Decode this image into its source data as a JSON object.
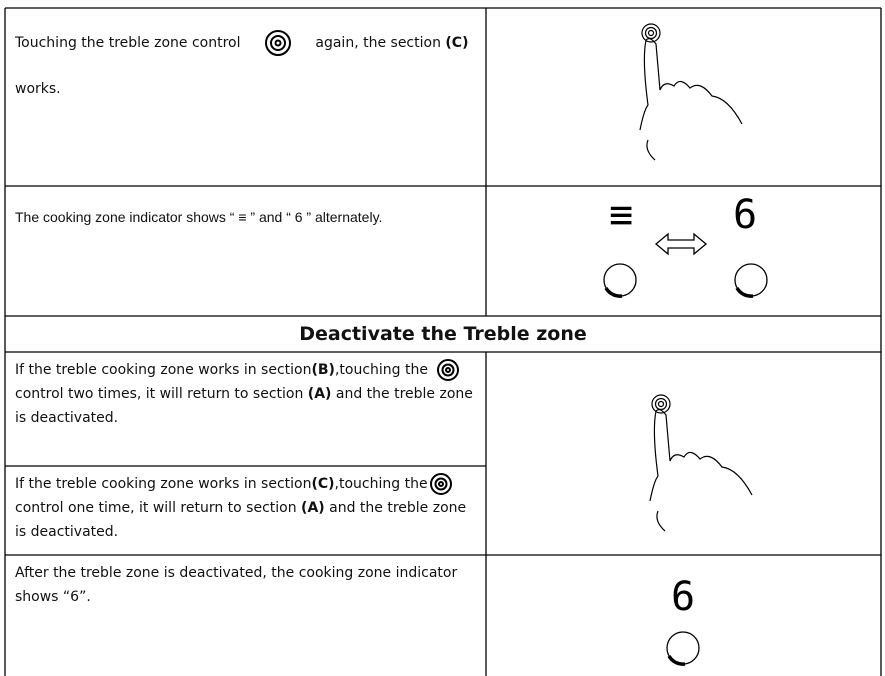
{
  "rows": [
    {
      "text": [
        "Touching the treble zone control",
        "again, the section",
        "(C)",
        "works."
      ]
    },
    {
      "text": [
        "The cooking zone indicator shows “ ≡ ” and “ 6 ” alternately."
      ],
      "display": [
        "≡",
        "6"
      ]
    },
    {
      "heading": "Deactivate the Treble zone"
    },
    {
      "text": [
        "If the treble cooking zone works in section",
        "(B)",
        ",touching the",
        "control two times, it will return to section",
        "(A)",
        "and the treble zone is deactivated."
      ]
    },
    {
      "text": [
        "If the treble cooking zone works in section",
        "(C)",
        ",touching the",
        "control one time, it will return to section",
        "(A)",
        "and the treble zone is deactivated."
      ]
    },
    {
      "text": [
        "After the treble zone is deactivated, the cooking zone indicator shows “6”."
      ],
      "display": [
        "6"
      ]
    }
  ]
}
